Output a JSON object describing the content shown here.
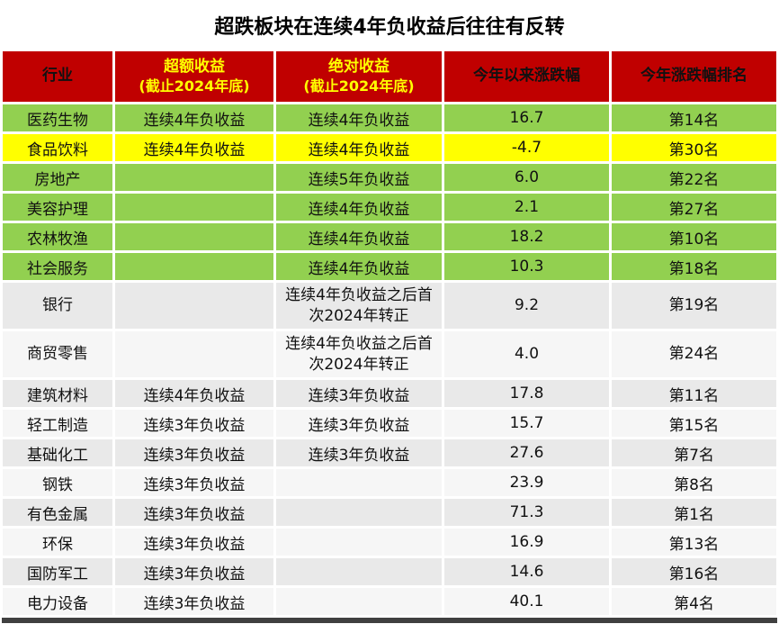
{
  "title": "超跌板块在连续4年负收益后往往有反转",
  "colors": {
    "header_bg": "#C00000",
    "header_text": "#FFFFFF",
    "header_accent_text": "#FFFF00",
    "row_green": "#92D050",
    "row_yellow": "#FFFF00",
    "row_gray": "#E9E9E9",
    "row_light": "#F6F6F6",
    "bottom_bar": "#404040"
  },
  "chart_data": {
    "type": "table",
    "title": "超跌板块在连续4年负收益后往往有反转",
    "columns": [
      "行业",
      "超额收益 (截止2024年底)",
      "绝对收益 (截止2024年底)",
      "今年以来涨跌幅",
      "今年涨跌幅排名"
    ],
    "rows": [
      {
        "industry": "医药生物",
        "excess": "连续4年负收益",
        "absolute": "连续4年负收益",
        "ytd": 16.7,
        "rank": "第14名",
        "highlight": "green"
      },
      {
        "industry": "食品饮料",
        "excess": "连续4年负收益",
        "absolute": "连续4年负收益",
        "ytd": -4.7,
        "rank": "第30名",
        "highlight": "yellow"
      },
      {
        "industry": "房地产",
        "excess": "",
        "absolute": "连续5年负收益",
        "ytd": 6.0,
        "rank": "第22名",
        "highlight": "green"
      },
      {
        "industry": "美容护理",
        "excess": "",
        "absolute": "连续4年负收益",
        "ytd": 2.1,
        "rank": "第27名",
        "highlight": "green"
      },
      {
        "industry": "农林牧渔",
        "excess": "",
        "absolute": "连续4年负收益",
        "ytd": 18.2,
        "rank": "第10名",
        "highlight": "green"
      },
      {
        "industry": "社会服务",
        "excess": "",
        "absolute": "连续4年负收益",
        "ytd": 10.3,
        "rank": "第18名",
        "highlight": "green"
      },
      {
        "industry": "银行",
        "excess": "",
        "absolute": "连续4年负收益之后首次2024年转正",
        "ytd": 9.2,
        "rank": "第19名",
        "highlight": "none"
      },
      {
        "industry": "商贸零售",
        "excess": "",
        "absolute": "连续4年负收益之后首次2024年转正",
        "ytd": 4.0,
        "rank": "第24名",
        "highlight": "none"
      },
      {
        "industry": "建筑材料",
        "excess": "连续4年负收益",
        "absolute": "连续3年负收益",
        "ytd": 17.8,
        "rank": "第11名",
        "highlight": "none"
      },
      {
        "industry": "轻工制造",
        "excess": "连续3年负收益",
        "absolute": "连续3年负收益",
        "ytd": 15.7,
        "rank": "第15名",
        "highlight": "none"
      },
      {
        "industry": "基础化工",
        "excess": "连续3年负收益",
        "absolute": "连续3年负收益",
        "ytd": 27.6,
        "rank": "第7名",
        "highlight": "none"
      },
      {
        "industry": "钢铁",
        "excess": "连续3年负收益",
        "absolute": "",
        "ytd": 23.9,
        "rank": "第8名",
        "highlight": "none"
      },
      {
        "industry": "有色金属",
        "excess": "连续3年负收益",
        "absolute": "",
        "ytd": 71.3,
        "rank": "第1名",
        "highlight": "none"
      },
      {
        "industry": "环保",
        "excess": "连续3年负收益",
        "absolute": "",
        "ytd": 16.9,
        "rank": "第13名",
        "highlight": "none"
      },
      {
        "industry": "国防军工",
        "excess": "连续3年负收益",
        "absolute": "",
        "ytd": 14.6,
        "rank": "第16名",
        "highlight": "none"
      },
      {
        "industry": "电力设备",
        "excess": "连续3年负收益",
        "absolute": "",
        "ytd": 40.1,
        "rank": "第4名",
        "highlight": "none"
      }
    ]
  },
  "table": {
    "headers": [
      {
        "label": "行业",
        "sub": ""
      },
      {
        "label": "超额收益",
        "sub": "(截止2024年底)"
      },
      {
        "label": "绝对收益",
        "sub": "(截止2024年底)"
      },
      {
        "label": "今年以来涨跌幅",
        "sub": ""
      },
      {
        "label": "今年涨跌幅排名",
        "sub": ""
      }
    ],
    "rows": [
      {
        "industry": "医药生物",
        "excess": "连续4年负收益",
        "absolute": "连续4年负收益",
        "ytd": "16.7",
        "rank": "第14名"
      },
      {
        "industry": "食品饮料",
        "excess": "连续4年负收益",
        "absolute": "连续4年负收益",
        "ytd": "-4.7",
        "rank": "第30名"
      },
      {
        "industry": "房地产",
        "excess": "",
        "absolute": "连续5年负收益",
        "ytd": "6.0",
        "rank": "第22名"
      },
      {
        "industry": "美容护理",
        "excess": "",
        "absolute": "连续4年负收益",
        "ytd": "2.1",
        "rank": "第27名"
      },
      {
        "industry": "农林牧渔",
        "excess": "",
        "absolute": "连续4年负收益",
        "ytd": "18.2",
        "rank": "第10名"
      },
      {
        "industry": "社会服务",
        "excess": "",
        "absolute": "连续4年负收益",
        "ytd": "10.3",
        "rank": "第18名"
      },
      {
        "industry": "银行",
        "excess": "",
        "absolute": "连续4年负收益之后首次2024年转正",
        "ytd": "9.2",
        "rank": "第19名"
      },
      {
        "industry": "商贸零售",
        "excess": "",
        "absolute": "连续4年负收益之后首次2024年转正",
        "ytd": "4.0",
        "rank": "第24名"
      },
      {
        "industry": "建筑材料",
        "excess": "连续4年负收益",
        "absolute": "连续3年负收益",
        "ytd": "17.8",
        "rank": "第11名"
      },
      {
        "industry": "轻工制造",
        "excess": "连续3年负收益",
        "absolute": "连续3年负收益",
        "ytd": "15.7",
        "rank": "第15名"
      },
      {
        "industry": "基础化工",
        "excess": "连续3年负收益",
        "absolute": "连续3年负收益",
        "ytd": "27.6",
        "rank": "第7名"
      },
      {
        "industry": "钢铁",
        "excess": "连续3年负收益",
        "absolute": "",
        "ytd": "23.9",
        "rank": "第8名"
      },
      {
        "industry": "有色金属",
        "excess": "连续3年负收益",
        "absolute": "",
        "ytd": "71.3",
        "rank": "第1名"
      },
      {
        "industry": "环保",
        "excess": "连续3年负收益",
        "absolute": "",
        "ytd": "16.9",
        "rank": "第13名"
      },
      {
        "industry": "国防军工",
        "excess": "连续3年负收益",
        "absolute": "",
        "ytd": "14.6",
        "rank": "第16名"
      },
      {
        "industry": "电力设备",
        "excess": "连续3年负收益",
        "absolute": "",
        "ytd": "40.1",
        "rank": "第4名"
      }
    ]
  }
}
